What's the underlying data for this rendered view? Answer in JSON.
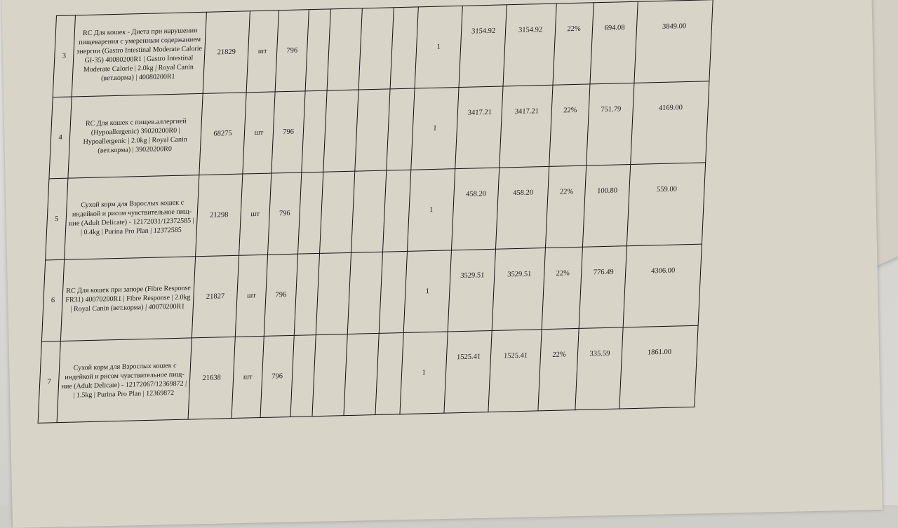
{
  "table": {
    "rows": [
      {
        "num": "3",
        "desc": "RC Для кошек - Диета при нарушении пищеварения с умеренным содержанием энергии (Gastro Intestinal Moderate Calorie GI-35) 40080200R1 | Gastro Intestinal Moderate Calorie | 2.0kg | Royal Canin (вет.корма) | 40080200R1",
        "code": "21829",
        "unit": "шт",
        "okei": "796",
        "qty": "1",
        "price": "3154.92",
        "sum": "3154.92",
        "vat_rate": "22%",
        "vat": "694.08",
        "total": "3849.00"
      },
      {
        "num": "4",
        "desc": "RC Для кошек с пищев.аллергией (Hypoallergenic) 39020200R0 | Hypoallergenic | 2.0kg | Royal Canin (вет.корма) | 39020200R0",
        "code": "68275",
        "unit": "шт",
        "okei": "796",
        "qty": "1",
        "price": "3417.21",
        "sum": "3417.21",
        "vat_rate": "22%",
        "vat": "751.79",
        "total": "4169.00"
      },
      {
        "num": "5",
        "desc": "Сухой корм для Взрослых кошек с индейкой и рисом чувствительное пищ-ние (Adult Delicate) - 12172031/12372585 | | 0.4kg | Purina Pro Plan | 12372585",
        "code": "21298",
        "unit": "шт",
        "okei": "796",
        "qty": "1",
        "price": "458.20",
        "sum": "458.20",
        "vat_rate": "22%",
        "vat": "100.80",
        "total": "559.00"
      },
      {
        "num": "6",
        "desc": "RC Для кошек при запоре (Fibre Response FR31) 40070200R1 | Fibre Response | 2.0kg | Royal Canin (вет.корма) | 40070200R1",
        "code": "21827",
        "unit": "шт",
        "okei": "796",
        "qty": "1",
        "price": "3529.51",
        "sum": "3529.51",
        "vat_rate": "22%",
        "vat": "776.49",
        "total": "4306.00"
      },
      {
        "num": "7",
        "desc": "Сухой корм для Взрослых кошек с индейкой и рисом чувствительное пищ-ние (Adult Delicate) - 12172067/12369872 | | 1.5kg | Purina Pro Plan | 12369872",
        "code": "21638",
        "unit": "шт",
        "okei": "796",
        "qty": "1",
        "price": "1525.41",
        "sum": "1525.41",
        "vat_rate": "22%",
        "vat": "335.59",
        "total": "1861.00"
      }
    ]
  }
}
